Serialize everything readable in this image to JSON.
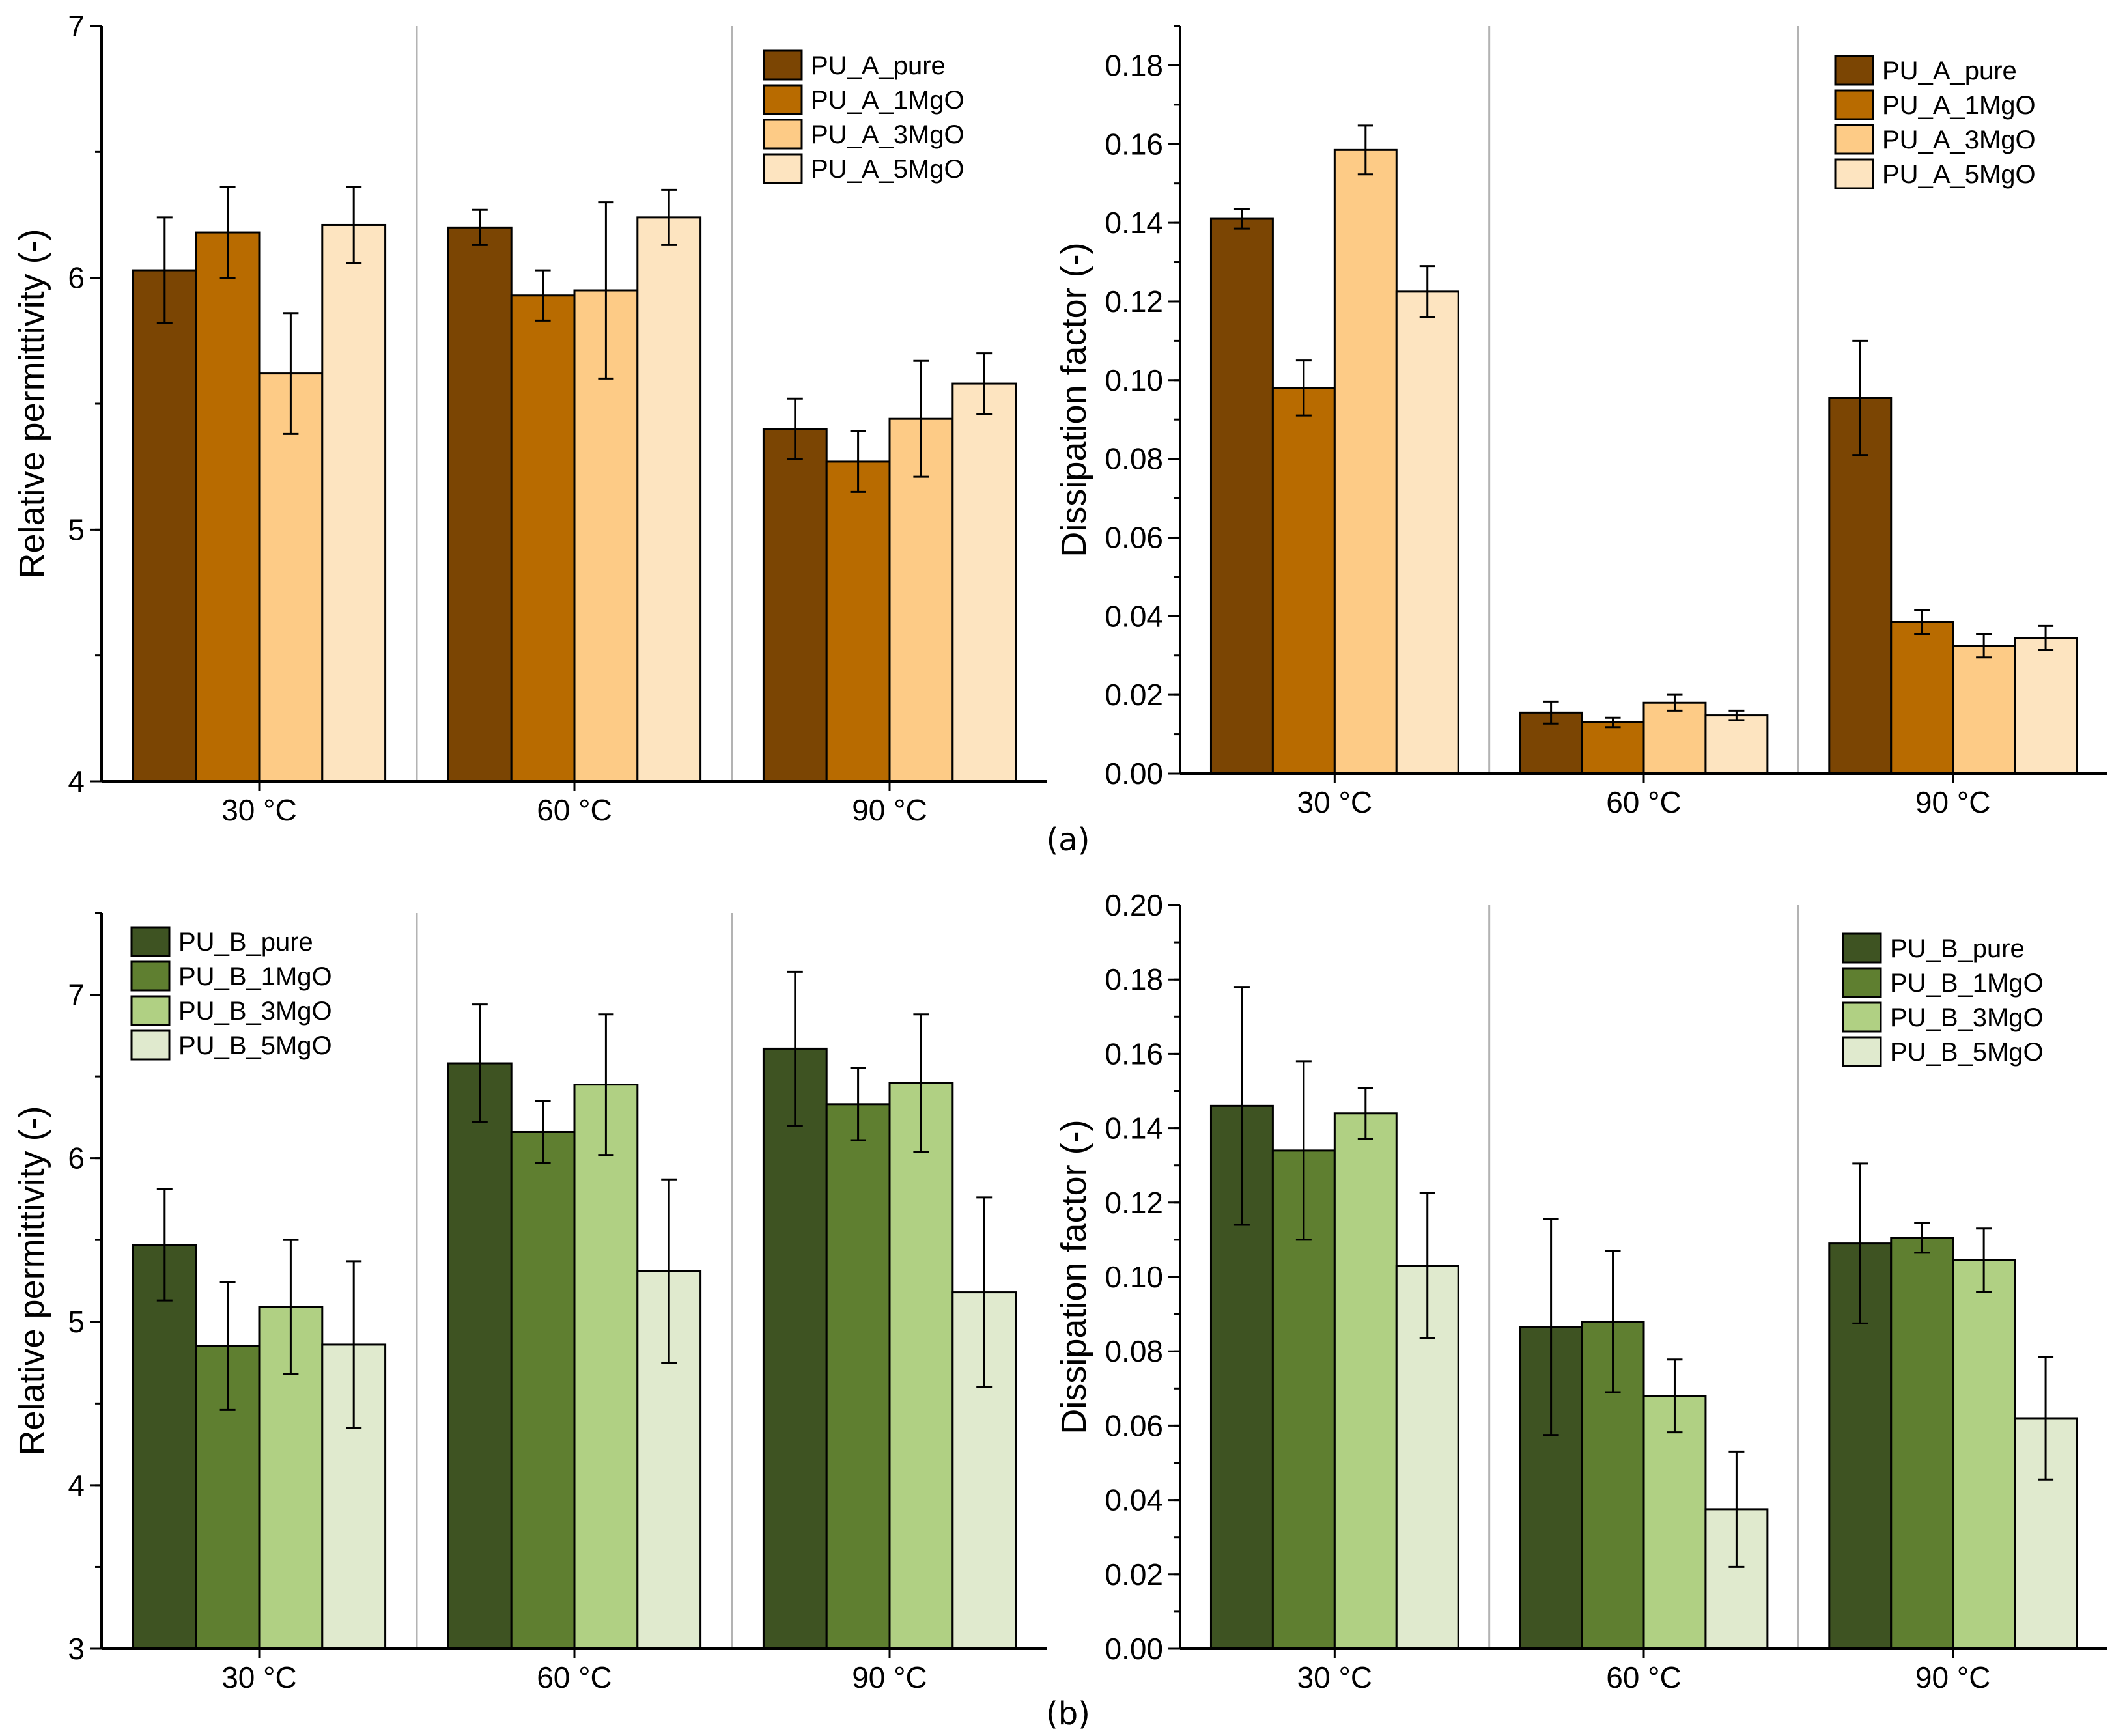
{
  "figure_labels": {
    "a": "(a)",
    "b": "(b)"
  },
  "chart_data": [
    {
      "id": "a-permittivity",
      "type": "bar",
      "title": "",
      "xlabel": "",
      "ylabel": "Relative permittivity (-)",
      "ylim": [
        4,
        7
      ],
      "yticks": [
        4,
        5,
        6,
        7
      ],
      "ytick_labels": [
        "4",
        "5",
        "6",
        "7"
      ],
      "minor_step": 0.5,
      "categories": [
        "30 °C",
        "60 °C",
        "90 °C"
      ],
      "legend_position": "top-right",
      "series": [
        {
          "name": "PU_A_pure",
          "color": "#7b4503",
          "values": [
            6.03,
            6.2,
            5.4
          ],
          "errors": [
            0.21,
            0.07,
            0.12
          ]
        },
        {
          "name": "PU_A_1MgO",
          "color": "#b86b00",
          "values": [
            6.18,
            5.93,
            5.27
          ],
          "errors": [
            0.18,
            0.1,
            0.12
          ]
        },
        {
          "name": "PU_A_3MgO",
          "color": "#fdcb86",
          "values": [
            5.62,
            5.95,
            5.44
          ],
          "errors": [
            0.24,
            0.35,
            0.23
          ]
        },
        {
          "name": "PU_A_5MgO",
          "color": "#fde4c0",
          "values": [
            6.21,
            6.24,
            5.58
          ],
          "errors": [
            0.15,
            0.11,
            0.12
          ]
        }
      ]
    },
    {
      "id": "a-dissipation",
      "type": "bar",
      "title": "",
      "xlabel": "",
      "ylabel": "Dissipation factor (-)",
      "ylim": [
        0,
        0.19
      ],
      "yticks": [
        0,
        0.02,
        0.04,
        0.06,
        0.08,
        0.1,
        0.12,
        0.14,
        0.16,
        0.18
      ],
      "ytick_labels": [
        "0.00",
        "0.02",
        "0.04",
        "0.06",
        "0.08",
        "0.10",
        "0.12",
        "0.14",
        "0.16",
        "0.18"
      ],
      "minor_step": 0.01,
      "categories": [
        "30 °C",
        "60 °C",
        "90 °C"
      ],
      "legend_position": "top-right",
      "series": [
        {
          "name": "PU_A_pure",
          "color": "#7b4503",
          "values": [
            0.141,
            0.0155,
            0.0955
          ],
          "errors": [
            0.0025,
            0.0028,
            0.0145
          ]
        },
        {
          "name": "PU_A_1MgO",
          "color": "#b86b00",
          "values": [
            0.098,
            0.013,
            0.0385
          ],
          "errors": [
            0.007,
            0.0012,
            0.003
          ]
        },
        {
          "name": "PU_A_3MgO",
          "color": "#fdcb86",
          "values": [
            0.1585,
            0.018,
            0.0325
          ],
          "errors": [
            0.0062,
            0.002,
            0.003
          ]
        },
        {
          "name": "PU_A_5MgO",
          "color": "#fde4c0",
          "values": [
            0.1225,
            0.0148,
            0.0345
          ],
          "errors": [
            0.0065,
            0.0012,
            0.003
          ]
        }
      ]
    },
    {
      "id": "b-permittivity",
      "type": "bar",
      "title": "",
      "xlabel": "",
      "ylabel": "Relative permittivity (-)",
      "ylim": [
        3,
        7.5
      ],
      "yticks": [
        3,
        4,
        5,
        6,
        7
      ],
      "ytick_labels": [
        "3",
        "4",
        "5",
        "6",
        "7"
      ],
      "minor_step": 0.5,
      "categories": [
        "30 °C",
        "60 °C",
        "90 °C"
      ],
      "legend_position": "top-left",
      "series": [
        {
          "name": "PU_B_pure",
          "color": "#3e5322",
          "values": [
            5.47,
            6.58,
            6.67
          ],
          "errors": [
            0.34,
            0.36,
            0.47
          ]
        },
        {
          "name": "PU_B_1MgO",
          "color": "#5f7f30",
          "values": [
            4.85,
            6.16,
            6.33
          ],
          "errors": [
            0.39,
            0.19,
            0.22
          ]
        },
        {
          "name": "PU_B_3MgO",
          "color": "#b0d083",
          "values": [
            5.09,
            6.45,
            6.46
          ],
          "errors": [
            0.41,
            0.43,
            0.42
          ]
        },
        {
          "name": "PU_B_5MgO",
          "color": "#e0eace",
          "values": [
            4.86,
            5.31,
            5.18
          ],
          "errors": [
            0.51,
            0.56,
            0.58
          ]
        }
      ]
    },
    {
      "id": "b-dissipation",
      "type": "bar",
      "title": "",
      "xlabel": "",
      "ylabel": "Dissipation factor (-)",
      "ylim": [
        0,
        0.2
      ],
      "yticks": [
        0,
        0.02,
        0.04,
        0.06,
        0.08,
        0.1,
        0.12,
        0.14,
        0.16,
        0.18,
        0.2
      ],
      "ytick_labels": [
        "0.00",
        "0.02",
        "0.04",
        "0.06",
        "0.08",
        "0.10",
        "0.12",
        "0.14",
        "0.16",
        "0.18",
        "0.20"
      ],
      "minor_step": 0.01,
      "categories": [
        "30 °C",
        "60 °C",
        "90 °C"
      ],
      "legend_position": "top-right",
      "series": [
        {
          "name": "PU_B_pure",
          "color": "#3e5322",
          "values": [
            0.146,
            0.0865,
            0.109
          ],
          "errors": [
            0.032,
            0.029,
            0.0215
          ]
        },
        {
          "name": "PU_B_1MgO",
          "color": "#5f7f30",
          "values": [
            0.134,
            0.088,
            0.1105
          ],
          "errors": [
            0.024,
            0.019,
            0.004
          ]
        },
        {
          "name": "PU_B_3MgO",
          "color": "#b0d083",
          "values": [
            0.144,
            0.068,
            0.1045
          ],
          "errors": [
            0.0068,
            0.0098,
            0.0085
          ]
        },
        {
          "name": "PU_B_5MgO",
          "color": "#e0eace",
          "values": [
            0.103,
            0.0375,
            0.062
          ],
          "errors": [
            0.0195,
            0.0155,
            0.0165
          ]
        }
      ]
    }
  ]
}
